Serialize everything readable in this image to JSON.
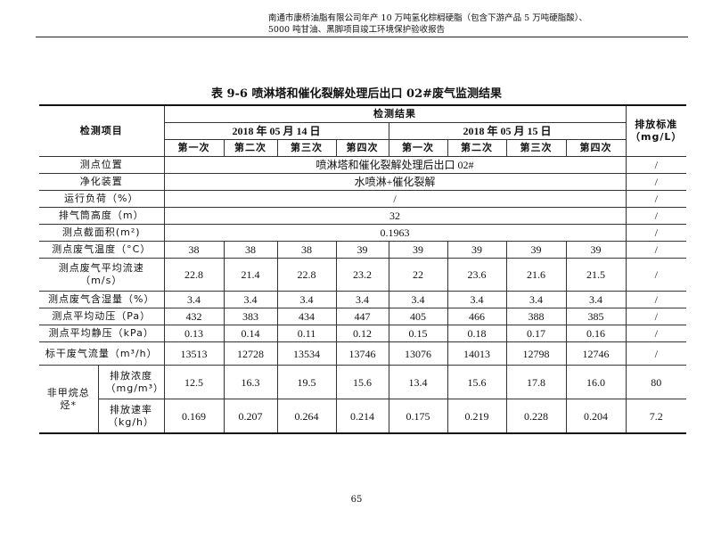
{
  "header": {
    "line1": "南通市康桥油脂有限公司年产 10 万吨氢化棕榈硬脂（包含下游产品 5 万吨硬脂酸）、",
    "line2": "5000 吨甘油、黑脚项目竣工环境保护验收报告"
  },
  "title": "表 9-6 喷淋塔和催化裂解处理后出口 02#废气监测结果",
  "table": {
    "item_header": "检测项目",
    "result_header": "检测结果",
    "standard_header": "排放标准（mg/L）",
    "dates": [
      "2018 年 05 月 14 日",
      "2018 年 05 月 15 日"
    ],
    "runs": [
      "第一次",
      "第二次",
      "第三次",
      "第四次",
      "第一次",
      "第二次",
      "第三次",
      "第四次"
    ],
    "span_rows": [
      {
        "label": "测点位置",
        "value": "喷淋塔和催化裂解处理后出口 02#",
        "std": "/"
      },
      {
        "label": "净化装置",
        "value": "水喷淋+催化裂解",
        "std": "/"
      },
      {
        "label": "运行负荷（%）",
        "value": "/",
        "std": "/"
      },
      {
        "label": "排气筒高度（m）",
        "value": "32",
        "std": "/"
      },
      {
        "label": "测点截面积(m²)",
        "value": "0.1963",
        "std": "/"
      }
    ],
    "rows": [
      {
        "label": "测点废气温度（°C）",
        "values": [
          "38",
          "38",
          "38",
          "39",
          "39",
          "39",
          "39",
          "39"
        ],
        "std": "/"
      },
      {
        "label": "测点废气平均流速（m/s）",
        "values": [
          "22.8",
          "21.4",
          "22.8",
          "23.2",
          "22",
          "23.6",
          "21.6",
          "21.5"
        ],
        "std": "/"
      },
      {
        "label": "测点废气含湿量（%）",
        "values": [
          "3.4",
          "3.4",
          "3.4",
          "3.4",
          "3.4",
          "3.4",
          "3.4",
          "3.4"
        ],
        "std": "/"
      },
      {
        "label": "测点平均动压（Pa）",
        "values": [
          "432",
          "383",
          "434",
          "447",
          "405",
          "466",
          "388",
          "385"
        ],
        "std": "/"
      },
      {
        "label": "测点平均静压（kPa）",
        "values": [
          "0.13",
          "0.14",
          "0.11",
          "0.12",
          "0.15",
          "0.18",
          "0.17",
          "0.16"
        ],
        "std": "/"
      },
      {
        "label": "标干废气流量（m³/h）",
        "values": [
          "13513",
          "12728",
          "13534",
          "13746",
          "13076",
          "14013",
          "12798",
          "12746"
        ],
        "std": "/"
      }
    ],
    "nmhc": {
      "label": "非甲烷总烃*",
      "sub": [
        {
          "label": "排放浓度（mg/m³）",
          "values": [
            "12.5",
            "16.3",
            "19.5",
            "15.6",
            "13.4",
            "15.6",
            "17.8",
            "16.0"
          ],
          "std": "80"
        },
        {
          "label": "排放速率（kg/h）",
          "values": [
            "0.169",
            "0.207",
            "0.264",
            "0.214",
            "0.175",
            "0.219",
            "0.228",
            "0.204"
          ],
          "std": "7.2"
        }
      ]
    }
  },
  "page_number": "65"
}
